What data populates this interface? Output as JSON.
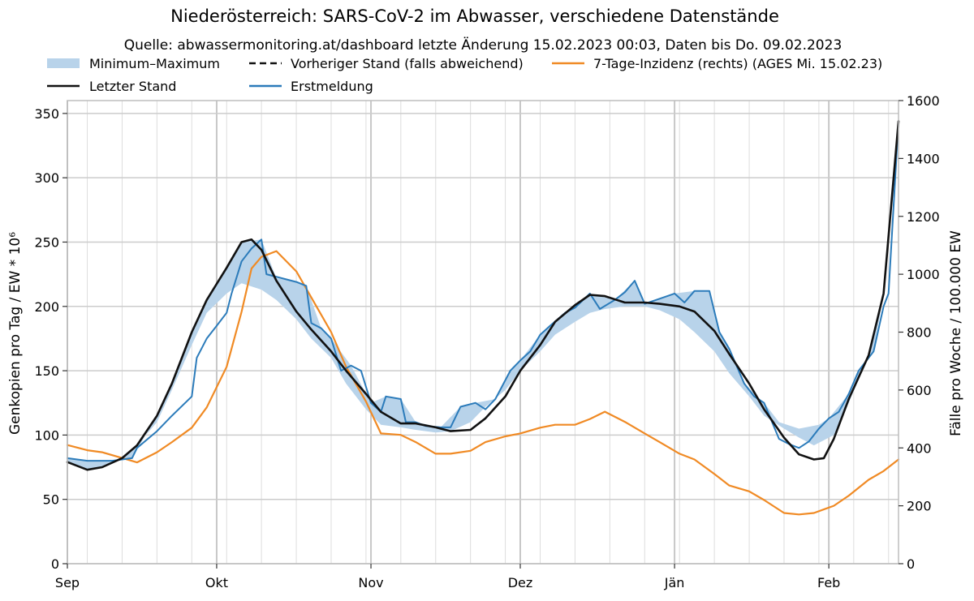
{
  "chart_data": {
    "type": "line",
    "title": "Niederösterreich: SARS-CoV-2 im Abwasser, verschiedene Datenstände",
    "subtitle": "Quelle: abwassermonitoring.at/dashboard letzte Änderung 15.02.2023 00:03, Daten bis Do. 09.02.2023",
    "ylabel": "Genkopien pro Tag / EW * 10⁶",
    "ylabel_right": "Fälle pro Woche / 100.000 EW",
    "x_range": [
      "2022-09-01",
      "2023-02-15"
    ],
    "ylim": [
      0,
      360
    ],
    "ylim_right": [
      0,
      1600
    ],
    "x_ticks": [
      {
        "date": "2022-09-01",
        "label": "Sep"
      },
      {
        "date": "2022-10-01",
        "label": "Okt"
      },
      {
        "date": "2022-11-01",
        "label": "Nov"
      },
      {
        "date": "2022-12-01",
        "label": "Dez"
      },
      {
        "date": "2023-01-01",
        "label": "Jän"
      },
      {
        "date": "2023-02-01",
        "label": "Feb"
      }
    ],
    "y_ticks": [
      0,
      50,
      100,
      150,
      200,
      250,
      300,
      350
    ],
    "y_ticks_right": [
      0,
      200,
      400,
      600,
      800,
      1000,
      1200,
      1400,
      1600
    ],
    "legend": [
      "Minimum–Maximum",
      "Vorheriger Stand (falls abweichend)",
      "7-Tage-Inzidenz (rechts) (AGES Mi. 15.02.23)",
      "Letzter Stand",
      "Erstmeldung"
    ],
    "grid": true,
    "colors": {
      "band": "#b8d3ea",
      "latest": "#111111",
      "first": "#2b7bba",
      "incidence": "#f08a24"
    },
    "series": [
      {
        "name": "Letzter Stand",
        "axis": "left",
        "points": [
          [
            "2022-09-01",
            79
          ],
          [
            "2022-09-05",
            73
          ],
          [
            "2022-09-08",
            75
          ],
          [
            "2022-09-12",
            82
          ],
          [
            "2022-09-15",
            92
          ],
          [
            "2022-09-19",
            115
          ],
          [
            "2022-09-22",
            140
          ],
          [
            "2022-09-26",
            180
          ],
          [
            "2022-09-29",
            205
          ],
          [
            "2022-10-03",
            230
          ],
          [
            "2022-10-06",
            250
          ],
          [
            "2022-10-08",
            252
          ],
          [
            "2022-10-10",
            244
          ],
          [
            "2022-10-13",
            220
          ],
          [
            "2022-10-17",
            196
          ],
          [
            "2022-10-20",
            182
          ],
          [
            "2022-10-24",
            165
          ],
          [
            "2022-10-27",
            150
          ],
          [
            "2022-10-31",
            132
          ],
          [
            "2022-11-03",
            118
          ],
          [
            "2022-11-07",
            109
          ],
          [
            "2022-11-10",
            109
          ],
          [
            "2022-11-14",
            106
          ],
          [
            "2022-11-17",
            103
          ],
          [
            "2022-11-21",
            104
          ],
          [
            "2022-11-24",
            113
          ],
          [
            "2022-11-28",
            130
          ],
          [
            "2022-12-01",
            150
          ],
          [
            "2022-12-05",
            170
          ],
          [
            "2022-12-08",
            188
          ],
          [
            "2022-12-12",
            201
          ],
          [
            "2022-12-15",
            209
          ],
          [
            "2022-12-18",
            208
          ],
          [
            "2022-12-22",
            203
          ],
          [
            "2022-12-26",
            203
          ],
          [
            "2022-12-29",
            202
          ],
          [
            "2023-01-02",
            200
          ],
          [
            "2023-01-05",
            196
          ],
          [
            "2023-01-09",
            181
          ],
          [
            "2023-01-12",
            163
          ],
          [
            "2023-01-16",
            140
          ],
          [
            "2023-01-19",
            120
          ],
          [
            "2023-01-23",
            98
          ],
          [
            "2023-01-26",
            85
          ],
          [
            "2023-01-29",
            81
          ],
          [
            "2023-01-31",
            82
          ],
          [
            "2023-02-02",
            97
          ],
          [
            "2023-02-05",
            128
          ],
          [
            "2023-02-09",
            162
          ],
          [
            "2023-02-12",
            210
          ],
          [
            "2023-02-15",
            344
          ]
        ]
      },
      {
        "name": "Erstmeldung",
        "axis": "left",
        "points": [
          [
            "2022-09-01",
            82
          ],
          [
            "2022-09-05",
            80
          ],
          [
            "2022-09-10",
            80
          ],
          [
            "2022-09-14",
            82
          ],
          [
            "2022-09-15",
            90
          ],
          [
            "2022-09-19",
            103
          ],
          [
            "2022-09-22",
            115
          ],
          [
            "2022-09-26",
            130
          ],
          [
            "2022-09-27",
            160
          ],
          [
            "2022-09-29",
            175
          ],
          [
            "2022-10-01",
            185
          ],
          [
            "2022-10-03",
            195
          ],
          [
            "2022-10-04",
            210
          ],
          [
            "2022-10-06",
            235
          ],
          [
            "2022-10-08",
            245
          ],
          [
            "2022-10-10",
            252
          ],
          [
            "2022-10-11",
            225
          ],
          [
            "2022-10-14",
            222
          ],
          [
            "2022-10-17",
            219
          ],
          [
            "2022-10-19",
            216
          ],
          [
            "2022-10-20",
            187
          ],
          [
            "2022-10-22",
            183
          ],
          [
            "2022-10-24",
            175
          ],
          [
            "2022-10-26",
            150
          ],
          [
            "2022-10-28",
            154
          ],
          [
            "2022-10-30",
            150
          ],
          [
            "2022-11-01",
            125
          ],
          [
            "2022-11-03",
            118
          ],
          [
            "2022-11-04",
            130
          ],
          [
            "2022-11-07",
            128
          ],
          [
            "2022-11-08",
            110
          ],
          [
            "2022-11-10",
            110
          ],
          [
            "2022-11-12",
            107
          ],
          [
            "2022-11-15",
            106
          ],
          [
            "2022-11-17",
            106
          ],
          [
            "2022-11-19",
            122
          ],
          [
            "2022-11-22",
            125
          ],
          [
            "2022-11-24",
            120
          ],
          [
            "2022-11-26",
            128
          ],
          [
            "2022-11-29",
            150
          ],
          [
            "2022-12-01",
            158
          ],
          [
            "2022-12-03",
            165
          ],
          [
            "2022-12-05",
            178
          ],
          [
            "2022-12-07",
            185
          ],
          [
            "2022-12-10",
            195
          ],
          [
            "2022-12-12",
            199
          ],
          [
            "2022-12-15",
            210
          ],
          [
            "2022-12-17",
            198
          ],
          [
            "2022-12-20",
            205
          ],
          [
            "2022-12-22",
            211
          ],
          [
            "2022-12-24",
            220
          ],
          [
            "2022-12-26",
            202
          ],
          [
            "2022-12-29",
            206
          ],
          [
            "2023-01-01",
            210
          ],
          [
            "2023-01-03",
            203
          ],
          [
            "2023-01-05",
            212
          ],
          [
            "2023-01-08",
            212
          ],
          [
            "2023-01-10",
            180
          ],
          [
            "2023-01-12",
            167
          ],
          [
            "2023-01-15",
            140
          ],
          [
            "2023-01-17",
            130
          ],
          [
            "2023-01-19",
            125
          ],
          [
            "2023-01-22",
            97
          ],
          [
            "2023-01-24",
            93
          ],
          [
            "2023-01-26",
            90
          ],
          [
            "2023-01-28",
            95
          ],
          [
            "2023-01-30",
            105
          ],
          [
            "2023-02-01",
            113
          ],
          [
            "2023-02-03",
            118
          ],
          [
            "2023-02-05",
            132
          ],
          [
            "2023-02-07",
            150
          ],
          [
            "2023-02-10",
            165
          ],
          [
            "2023-02-12",
            200
          ],
          [
            "2023-02-13",
            210
          ],
          [
            "2023-02-15",
            344
          ]
        ]
      },
      {
        "name": "7-Tage-Inzidenz (rechts) (AGES Mi. 15.02.23)",
        "axis": "right",
        "points": [
          [
            "2022-09-01",
            410
          ],
          [
            "2022-09-05",
            392
          ],
          [
            "2022-09-08",
            385
          ],
          [
            "2022-09-12",
            365
          ],
          [
            "2022-09-15",
            350
          ],
          [
            "2022-09-19",
            385
          ],
          [
            "2022-09-22",
            420
          ],
          [
            "2022-09-26",
            470
          ],
          [
            "2022-09-29",
            540
          ],
          [
            "2022-10-03",
            680
          ],
          [
            "2022-10-06",
            870
          ],
          [
            "2022-10-08",
            1020
          ],
          [
            "2022-10-10",
            1060
          ],
          [
            "2022-10-13",
            1080
          ],
          [
            "2022-10-17",
            1010
          ],
          [
            "2022-10-20",
            920
          ],
          [
            "2022-10-24",
            800
          ],
          [
            "2022-10-27",
            680
          ],
          [
            "2022-10-31",
            560
          ],
          [
            "2022-11-03",
            450
          ],
          [
            "2022-11-07",
            445
          ],
          [
            "2022-11-10",
            420
          ],
          [
            "2022-11-14",
            380
          ],
          [
            "2022-11-17",
            380
          ],
          [
            "2022-11-21",
            390
          ],
          [
            "2022-11-24",
            420
          ],
          [
            "2022-11-28",
            440
          ],
          [
            "2022-12-01",
            450
          ],
          [
            "2022-12-05",
            470
          ],
          [
            "2022-12-08",
            480
          ],
          [
            "2022-12-12",
            480
          ],
          [
            "2022-12-15",
            500
          ],
          [
            "2022-12-18",
            525
          ],
          [
            "2022-12-22",
            490
          ],
          [
            "2022-12-26",
            450
          ],
          [
            "2022-12-29",
            420
          ],
          [
            "2023-01-02",
            380
          ],
          [
            "2023-01-05",
            360
          ],
          [
            "2023-01-09",
            310
          ],
          [
            "2023-01-12",
            270
          ],
          [
            "2023-01-16",
            250
          ],
          [
            "2023-01-19",
            220
          ],
          [
            "2023-01-23",
            175
          ],
          [
            "2023-01-26",
            170
          ],
          [
            "2023-01-29",
            175
          ],
          [
            "2023-02-02",
            200
          ],
          [
            "2023-02-05",
            235
          ],
          [
            "2023-02-09",
            290
          ],
          [
            "2023-02-12",
            320
          ],
          [
            "2023-02-15",
            360
          ]
        ]
      }
    ],
    "band": {
      "name": "Minimum–Maximum",
      "lower": [
        [
          "2022-09-01",
          79
        ],
        [
          "2022-09-05",
          73
        ],
        [
          "2022-09-08",
          75
        ],
        [
          "2022-09-12",
          82
        ],
        [
          "2022-09-15",
          92
        ],
        [
          "2022-09-19",
          110
        ],
        [
          "2022-09-22",
          135
        ],
        [
          "2022-09-26",
          170
        ],
        [
          "2022-09-29",
          195
        ],
        [
          "2022-10-03",
          210
        ],
        [
          "2022-10-06",
          218
        ],
        [
          "2022-10-10",
          213
        ],
        [
          "2022-10-13",
          205
        ],
        [
          "2022-10-17",
          190
        ],
        [
          "2022-10-20",
          175
        ],
        [
          "2022-10-24",
          160
        ],
        [
          "2022-10-27",
          140
        ],
        [
          "2022-10-31",
          120
        ],
        [
          "2022-11-03",
          108
        ],
        [
          "2022-11-07",
          106
        ],
        [
          "2022-11-10",
          104
        ],
        [
          "2022-11-14",
          102
        ],
        [
          "2022-11-17",
          103
        ],
        [
          "2022-11-21",
          110
        ],
        [
          "2022-11-24",
          122
        ],
        [
          "2022-11-28",
          135
        ],
        [
          "2022-12-01",
          150
        ],
        [
          "2022-12-05",
          165
        ],
        [
          "2022-12-08",
          178
        ],
        [
          "2022-12-12",
          188
        ],
        [
          "2022-12-15",
          195
        ],
        [
          "2022-12-18",
          198
        ],
        [
          "2022-12-22",
          200
        ],
        [
          "2022-12-26",
          200
        ],
        [
          "2022-12-29",
          197
        ],
        [
          "2023-01-02",
          190
        ],
        [
          "2023-01-05",
          180
        ],
        [
          "2023-01-09",
          165
        ],
        [
          "2023-01-12",
          148
        ],
        [
          "2023-01-16",
          130
        ],
        [
          "2023-01-19",
          115
        ],
        [
          "2023-01-23",
          105
        ],
        [
          "2023-01-26",
          98
        ],
        [
          "2023-01-29",
          92
        ],
        [
          "2023-02-02",
          100
        ],
        [
          "2023-02-05",
          125
        ],
        [
          "2023-02-09",
          162
        ],
        [
          "2023-02-12",
          210
        ],
        [
          "2023-02-15",
          344
        ]
      ],
      "upper": [
        [
          "2022-09-01",
          82
        ],
        [
          "2022-09-05",
          80
        ],
        [
          "2022-09-10",
          80
        ],
        [
          "2022-09-14",
          82
        ],
        [
          "2022-09-19",
          115
        ],
        [
          "2022-09-22",
          140
        ],
        [
          "2022-09-26",
          180
        ],
        [
          "2022-09-29",
          205
        ],
        [
          "2022-10-03",
          230
        ],
        [
          "2022-10-06",
          250
        ],
        [
          "2022-10-10",
          252
        ],
        [
          "2022-10-13",
          222
        ],
        [
          "2022-10-17",
          219
        ],
        [
          "2022-10-19",
          216
        ],
        [
          "2022-10-22",
          183
        ],
        [
          "2022-10-24",
          175
        ],
        [
          "2022-10-28",
          154
        ],
        [
          "2022-11-01",
          125
        ],
        [
          "2022-11-04",
          130
        ],
        [
          "2022-11-07",
          128
        ],
        [
          "2022-11-10",
          110
        ],
        [
          "2022-11-15",
          106
        ],
        [
          "2022-11-19",
          122
        ],
        [
          "2022-11-22",
          125
        ],
        [
          "2022-11-26",
          128
        ],
        [
          "2022-11-29",
          150
        ],
        [
          "2022-12-01",
          158
        ],
        [
          "2022-12-05",
          178
        ],
        [
          "2022-12-10",
          195
        ],
        [
          "2022-12-15",
          210
        ],
        [
          "2022-12-20",
          205
        ],
        [
          "2022-12-24",
          220
        ],
        [
          "2022-12-26",
          202
        ],
        [
          "2023-01-01",
          210
        ],
        [
          "2023-01-05",
          212
        ],
        [
          "2023-01-08",
          212
        ],
        [
          "2023-01-10",
          180
        ],
        [
          "2023-01-12",
          167
        ],
        [
          "2023-01-15",
          140
        ],
        [
          "2023-01-19",
          125
        ],
        [
          "2023-01-22",
          110
        ],
        [
          "2023-01-26",
          105
        ],
        [
          "2023-01-30",
          108
        ],
        [
          "2023-02-01",
          113
        ],
        [
          "2023-02-05",
          132
        ],
        [
          "2023-02-07",
          150
        ],
        [
          "2023-02-10",
          165
        ],
        [
          "2023-02-12",
          210
        ],
        [
          "2023-02-15",
          344
        ]
      ]
    }
  }
}
